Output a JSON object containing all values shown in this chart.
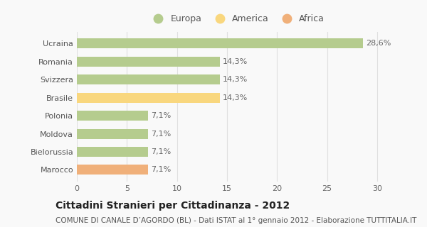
{
  "categories": [
    "Ucraina",
    "Romania",
    "Svizzera",
    "Brasile",
    "Polonia",
    "Moldova",
    "Bielorussia",
    "Marocco"
  ],
  "values": [
    28.6,
    14.3,
    14.3,
    14.3,
    7.1,
    7.1,
    7.1,
    7.1
  ],
  "labels": [
    "28,6%",
    "14,3%",
    "14,3%",
    "14,3%",
    "7,1%",
    "7,1%",
    "7,1%",
    "7,1%"
  ],
  "colors": [
    "#b5cc8e",
    "#b5cc8e",
    "#b5cc8e",
    "#f9d77e",
    "#b5cc8e",
    "#b5cc8e",
    "#b5cc8e",
    "#f0b07a"
  ],
  "legend": [
    {
      "label": "Europa",
      "color": "#b5cc8e"
    },
    {
      "label": "America",
      "color": "#f9d77e"
    },
    {
      "label": "Africa",
      "color": "#f0b07a"
    }
  ],
  "xlim": [
    0,
    32
  ],
  "xticks": [
    0,
    5,
    10,
    15,
    20,
    25,
    30
  ],
  "title": "Cittadini Stranieri per Cittadinanza - 2012",
  "subtitle": "COMUNE DI CANALE D’AGORDO (BL) - Dati ISTAT al 1° gennaio 2012 - Elaborazione TUTTITALIA.IT",
  "bg_color": "#f9f9f9",
  "grid_color": "#e0e0e0",
  "bar_height": 0.55,
  "title_fontsize": 10,
  "subtitle_fontsize": 7.5,
  "tick_fontsize": 8,
  "label_fontsize": 8
}
